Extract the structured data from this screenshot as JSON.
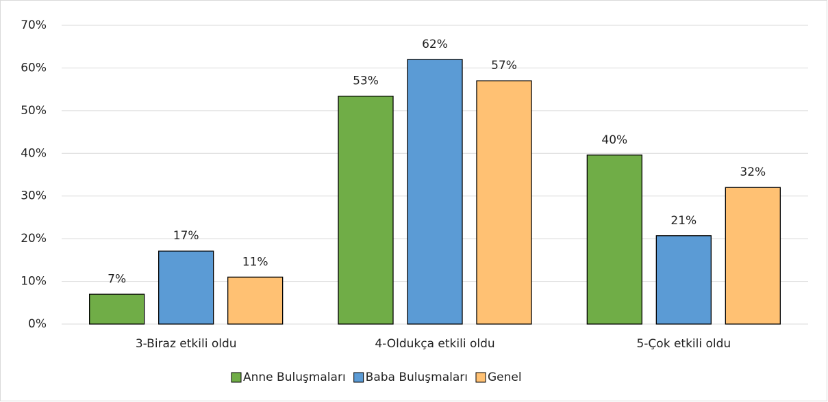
{
  "chart_data": {
    "type": "bar",
    "categories": [
      "3-Biraz etkili oldu",
      "4-Oldukça etkili oldu",
      "5-Çok etkili oldu"
    ],
    "series": [
      {
        "name": "Anne Buluşmaları",
        "color": "#70ad47",
        "values": [
          7,
          53.4,
          39.6
        ],
        "value_labels": [
          "7%",
          "53%",
          "40%"
        ]
      },
      {
        "name": "Baba Buluşmaları",
        "color": "#5b9bd5",
        "values": [
          17.1,
          62,
          20.7
        ],
        "value_labels": [
          "17%",
          "62%",
          "21%"
        ]
      },
      {
        "name": "Genel",
        "color": "#ffc173",
        "values": [
          11,
          57,
          32
        ],
        "value_labels": [
          "11%",
          "57%",
          "32%"
        ]
      }
    ],
    "ylim": [
      0,
      70
    ],
    "yticks": [
      {
        "value": 0,
        "label": "0%"
      },
      {
        "value": 10,
        "label": "10%"
      },
      {
        "value": 20,
        "label": "20%"
      },
      {
        "value": 30,
        "label": "30%"
      },
      {
        "value": 40,
        "label": "40%"
      },
      {
        "value": 50,
        "label": "50%"
      },
      {
        "value": 60,
        "label": "60%"
      },
      {
        "value": 70,
        "label": "70%"
      }
    ],
    "grid": true,
    "legend": "bottom"
  }
}
